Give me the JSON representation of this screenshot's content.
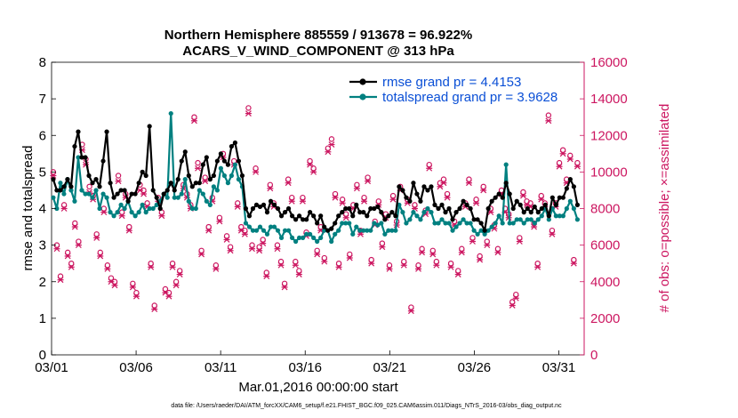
{
  "chart_data": {
    "type": "line",
    "title": "Northern Hemisphere 885559 / 913678 = 96.922%",
    "subtitle": "ACARS_V_WIND_COMPONENT @ 313 hPa",
    "xlabel": "Mar.01,2016 00:00:00 start",
    "ylabel": "rmse and totalspread",
    "y2label": "# of obs: o=possible; ×=assimilated",
    "footnote": "data file: /Users/raeder/DAI/ATM_forcXX/CAM6_setup/f.e21.FHIST_BGC.f09_025.CAM6assim.011/Diags_NTrS_2016-03/obs_diag_output.nc",
    "x_ticks": [
      "03/01",
      "03/06",
      "03/11",
      "03/16",
      "03/21",
      "03/26",
      "03/31"
    ],
    "y_ticks": [
      "0",
      "1",
      "2",
      "3",
      "4",
      "5",
      "6",
      "7",
      "8"
    ],
    "y2_ticks": [
      "0",
      "2000",
      "4000",
      "6000",
      "8000",
      "10000",
      "12000",
      "14000",
      "16000"
    ],
    "xlim": [
      0,
      31.5
    ],
    "ylim": [
      0,
      8
    ],
    "y2lim": [
      0,
      16000
    ],
    "grid": false,
    "legend_position": "top-right",
    "colors": {
      "rmse": "#000000",
      "spread": "#008080",
      "obs": "#cc1660",
      "legend_text": "#0a4fd6",
      "y2axis": "#cc1660"
    },
    "series": [
      {
        "name": "rmse grand pr = 4.4153",
        "color": "#000000",
        "values": [
          4.8,
          4.5,
          4.5,
          4.6,
          4.8,
          4.6,
          5.7,
          6.1,
          5.4,
          5.4,
          4.9,
          4.7,
          4.8,
          4.6,
          5.3,
          6.1,
          4.7,
          4.3,
          4.4,
          4.5,
          4.5,
          4.2,
          4.4,
          4.4,
          4.7,
          5.0,
          4.9,
          6.25,
          4.5,
          4.3,
          4.0,
          4.4,
          4.5,
          4.7,
          4.5,
          4.8,
          5.3,
          5.55,
          4.9,
          4.6,
          4.7,
          4.7,
          5.2,
          5.4,
          4.8,
          4.9,
          5.3,
          5.5,
          5.3,
          5.2,
          5.7,
          5.8,
          5.3,
          4.9,
          4.0,
          3.8,
          4.0,
          4.1,
          4.05,
          4.1,
          3.9,
          4.2,
          4.1,
          4.0,
          3.8,
          3.9,
          4.0,
          3.8,
          3.7,
          3.8,
          3.7,
          3.7,
          3.9,
          3.8,
          3.6,
          3.8,
          3.5,
          3.4,
          3.45,
          3.6,
          3.8,
          3.9,
          4.0,
          4.0,
          3.8,
          4.1,
          3.9,
          3.9,
          3.8,
          4.0,
          4.0,
          4.05,
          3.9,
          3.7,
          3.8,
          3.9,
          3.8,
          4.6,
          4.5,
          4.3,
          4.2,
          4.7,
          4.4,
          4.2,
          4.6,
          4.5,
          4.6,
          4.1,
          4.0,
          4.1,
          3.9,
          4.0,
          3.7,
          3.9,
          4.0,
          4.2,
          4.1,
          4.0,
          3.7,
          3.7,
          3.6,
          3.4,
          4.0,
          4.2,
          4.3,
          4.4,
          4.3,
          4.7,
          4.4,
          4.0,
          4.2,
          4.1,
          3.9,
          4.0,
          3.9,
          4.05,
          3.9,
          4.0,
          4.1,
          3.8,
          4.3,
          4.1,
          4.3,
          4.3,
          4.55,
          4.8,
          4.6,
          4.1
        ]
      },
      {
        "name": "totalspread grand pr = 3.9628",
        "color": "#008080",
        "values": [
          4.3,
          4.0,
          4.7,
          4.4,
          4.8,
          4.5,
          4.2,
          5.4,
          4.5,
          4.4,
          4.4,
          4.3,
          4.5,
          4.0,
          4.4,
          4.3,
          3.9,
          3.8,
          3.9,
          4.1,
          4.0,
          4.2,
          3.9,
          3.8,
          3.9,
          4.1,
          3.9,
          4.0,
          4.0,
          4.1,
          4.2,
          4.4,
          4.3,
          6.6,
          4.3,
          4.3,
          4.4,
          4.8,
          4.2,
          4.0,
          4.0,
          4.5,
          4.4,
          4.2,
          4.1,
          4.6,
          4.5,
          5.1,
          4.9,
          4.7,
          4.9,
          5.2,
          4.8,
          4.6,
          3.6,
          3.5,
          3.4,
          3.4,
          3.5,
          3.4,
          3.3,
          3.5,
          3.5,
          3.4,
          3.2,
          3.4,
          3.4,
          3.2,
          3.1,
          3.2,
          3.2,
          3.3,
          3.3,
          3.2,
          3.1,
          3.2,
          3.4,
          3.4,
          3.1,
          3.3,
          3.4,
          3.6,
          3.6,
          3.6,
          3.3,
          3.5,
          3.4,
          3.4,
          3.4,
          3.4,
          3.6,
          3.55,
          3.6,
          3.3,
          3.4,
          3.4,
          3.4,
          4.1,
          3.9,
          3.6,
          3.7,
          3.9,
          3.8,
          3.7,
          3.9,
          4.0,
          3.9,
          3.6,
          3.6,
          3.7,
          3.6,
          3.6,
          3.4,
          3.5,
          3.6,
          3.7,
          3.6,
          3.6,
          3.4,
          3.3,
          3.4,
          3.3,
          3.4,
          3.5,
          3.6,
          3.8,
          3.6,
          5.2,
          3.6,
          3.6,
          3.7,
          3.7,
          3.6,
          3.7,
          3.7,
          3.6,
          3.7,
          3.8,
          4.0,
          3.7,
          4.0,
          3.8,
          3.8,
          3.8,
          4.0,
          4.2,
          4.0,
          3.7
        ]
      },
      {
        "name": "possible",
        "axis": "y2",
        "marker": "o",
        "color": "#cc1660",
        "values": [
          10000,
          6000,
          4300,
          8200,
          5600,
          5000,
          7200,
          6200,
          11500,
          10700,
          9200,
          8700,
          6600,
          5600,
          8000,
          4900,
          4200,
          4000,
          9800,
          7800,
          8800,
          7000,
          3900,
          3400,
          9300,
          9000,
          8300,
          5000,
          2700,
          8600,
          7800,
          3600,
          3400,
          5000,
          4000,
          4600,
          9300,
          8800,
          8200,
          13000,
          10500,
          5700,
          9700,
          7000,
          8600,
          4900,
          7500,
          11000,
          6500,
          5900,
          10600,
          8300,
          7000,
          6800,
          13500,
          6000,
          10200,
          5900,
          6300,
          4500,
          9300,
          8300,
          6000,
          5100,
          3900,
          9600,
          8600,
          5100,
          4600,
          8600,
          6700,
          10600,
          10200,
          5700,
          7000,
          5300,
          11300,
          11800,
          8800,
          5000,
          8500,
          7700,
          5500,
          8200,
          9300,
          6800,
          8600,
          9700,
          5200,
          7300,
          8400,
          6100,
          7700,
          4900,
          8700,
          7300,
          9200,
          5100,
          8500,
          2600,
          8200,
          4900,
          5800,
          7900,
          10400,
          5700,
          5100,
          9400,
          9600,
          8800,
          5000,
          7300,
          4600,
          5800,
          8300,
          9600,
          6400,
          8500,
          5400,
          9200,
          6200,
          8000,
          7100,
          5800,
          9000,
          8000,
          7700,
          2900,
          3300,
          6400,
          8900,
          8400,
          8300,
          7200,
          5000,
          8700,
          8300,
          13100,
          6800,
          8300,
          10500,
          11200,
          9600,
          10900,
          5200,
          10500
        ]
      },
      {
        "name": "assimilated",
        "axis": "y2",
        "marker": "x",
        "color": "#cc1660",
        "values": [
          9800,
          5800,
          4100,
          8000,
          5400,
          4800,
          7000,
          6000,
          11200,
          10400,
          8900,
          8500,
          6400,
          5400,
          7800,
          4700,
          4000,
          3800,
          9500,
          7600,
          8600,
          6800,
          3700,
          3200,
          9000,
          8800,
          8100,
          4800,
          2500,
          8400,
          7600,
          3400,
          3200,
          4800,
          3800,
          4400,
          9100,
          8600,
          8000,
          12800,
          10200,
          5500,
          9500,
          6800,
          8400,
          4700,
          7300,
          10800,
          6300,
          5700,
          10400,
          8100,
          6800,
          6600,
          13200,
          5800,
          10000,
          5700,
          6100,
          4300,
          9100,
          8100,
          5800,
          4900,
          3700,
          9400,
          8400,
          4900,
          4400,
          8400,
          6500,
          10400,
          10000,
          5500,
          6800,
          5100,
          11100,
          11500,
          8600,
          4800,
          8300,
          7500,
          5300,
          8000,
          9100,
          6600,
          8400,
          9500,
          5000,
          7100,
          8200,
          5900,
          7500,
          4700,
          8500,
          7100,
          9000,
          4900,
          8300,
          2400,
          8000,
          4700,
          5600,
          7700,
          10200,
          5500,
          4900,
          9200,
          9400,
          8600,
          4800,
          7100,
          4400,
          5600,
          8100,
          9400,
          6200,
          8300,
          5200,
          9000,
          6000,
          7800,
          6900,
          5600,
          8800,
          7800,
          7500,
          2700,
          3100,
          6200,
          8700,
          8200,
          8100,
          7000,
          4800,
          8500,
          8100,
          12800,
          6600,
          8100,
          10300,
          11000,
          9400,
          10700,
          5000,
          10300
        ]
      }
    ]
  }
}
